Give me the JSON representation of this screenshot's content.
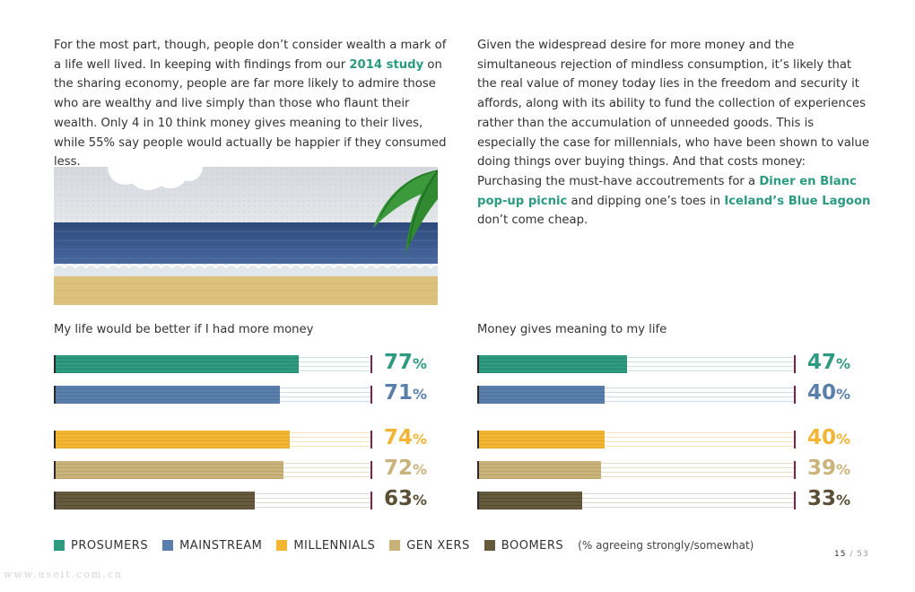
{
  "left_paragraph": {
    "text_before_link": "For the most part, though, people don’t consider wealth a mark of a life well lived. In keeping with findings from our ",
    "link_text": "2014 study",
    "text_after_link": " on the sharing economy, people are far more likely to admire those who are wealthy and live simply than those who flaunt their wealth. Only 4 in 10 think money gives meaning to their lives, while 55% say people would actually be happier if they consumed less."
  },
  "right_paragraph": {
    "text_1": "Given the widespread desire for more money and the simultaneous rejection of mindless consumption, it’s likely that the real value of money today lies in the freedom and security it affords, along with its ability to fund the collection of experiences rather than the accumulation of unneeded goods. This is especially the case for millennials, who have been shown to value doing things over buying things. And that costs money: Purchasing the must-have accoutrements for a ",
    "link_1": "Diner en Blanc pop-up picnic",
    "text_2": " and dipping one’s toes in ",
    "link_2": "Iceland’s Blue Lagoon",
    "text_3": " don’t come cheap."
  },
  "chart_data": [
    {
      "type": "bar",
      "title": "My life would be better if I had more money",
      "categories": [
        "PROSUMERS",
        "MAINSTREAM",
        "MILLENNIALS",
        "GEN XERS",
        "BOOMERS"
      ],
      "values": [
        77,
        71,
        74,
        72,
        63
      ],
      "labels": [
        "77",
        "71",
        "74",
        "72",
        "63"
      ],
      "xlim": [
        0,
        100
      ],
      "unit": "%"
    },
    {
      "type": "bar",
      "title": "Money gives meaning to my life",
      "categories": [
        "PROSUMERS",
        "MAINSTREAM",
        "MILLENNIALS",
        "GEN XERS",
        "BOOMERS"
      ],
      "values": [
        47,
        40,
        40,
        39,
        33
      ],
      "labels": [
        "47",
        "40",
        "40",
        "39",
        "33"
      ],
      "xlim": [
        0,
        100
      ],
      "unit": "%"
    }
  ],
  "legend": {
    "items": [
      {
        "label": "PROSUMERS",
        "color": "#2e9a7f"
      },
      {
        "label": "MAINSTREAM",
        "color": "#5b7fab"
      },
      {
        "label": "MILLENNIALS",
        "color": "#f2b534"
      },
      {
        "label": "GEN XERS",
        "color": "#c9b37b"
      },
      {
        "label": "BOOMERS",
        "color": "#665a3d"
      }
    ],
    "note": "(% agreeing strongly/somewhat)"
  },
  "page_number": {
    "current": "15",
    "total": "/ 53"
  },
  "watermark": "www.useit.com.cn"
}
